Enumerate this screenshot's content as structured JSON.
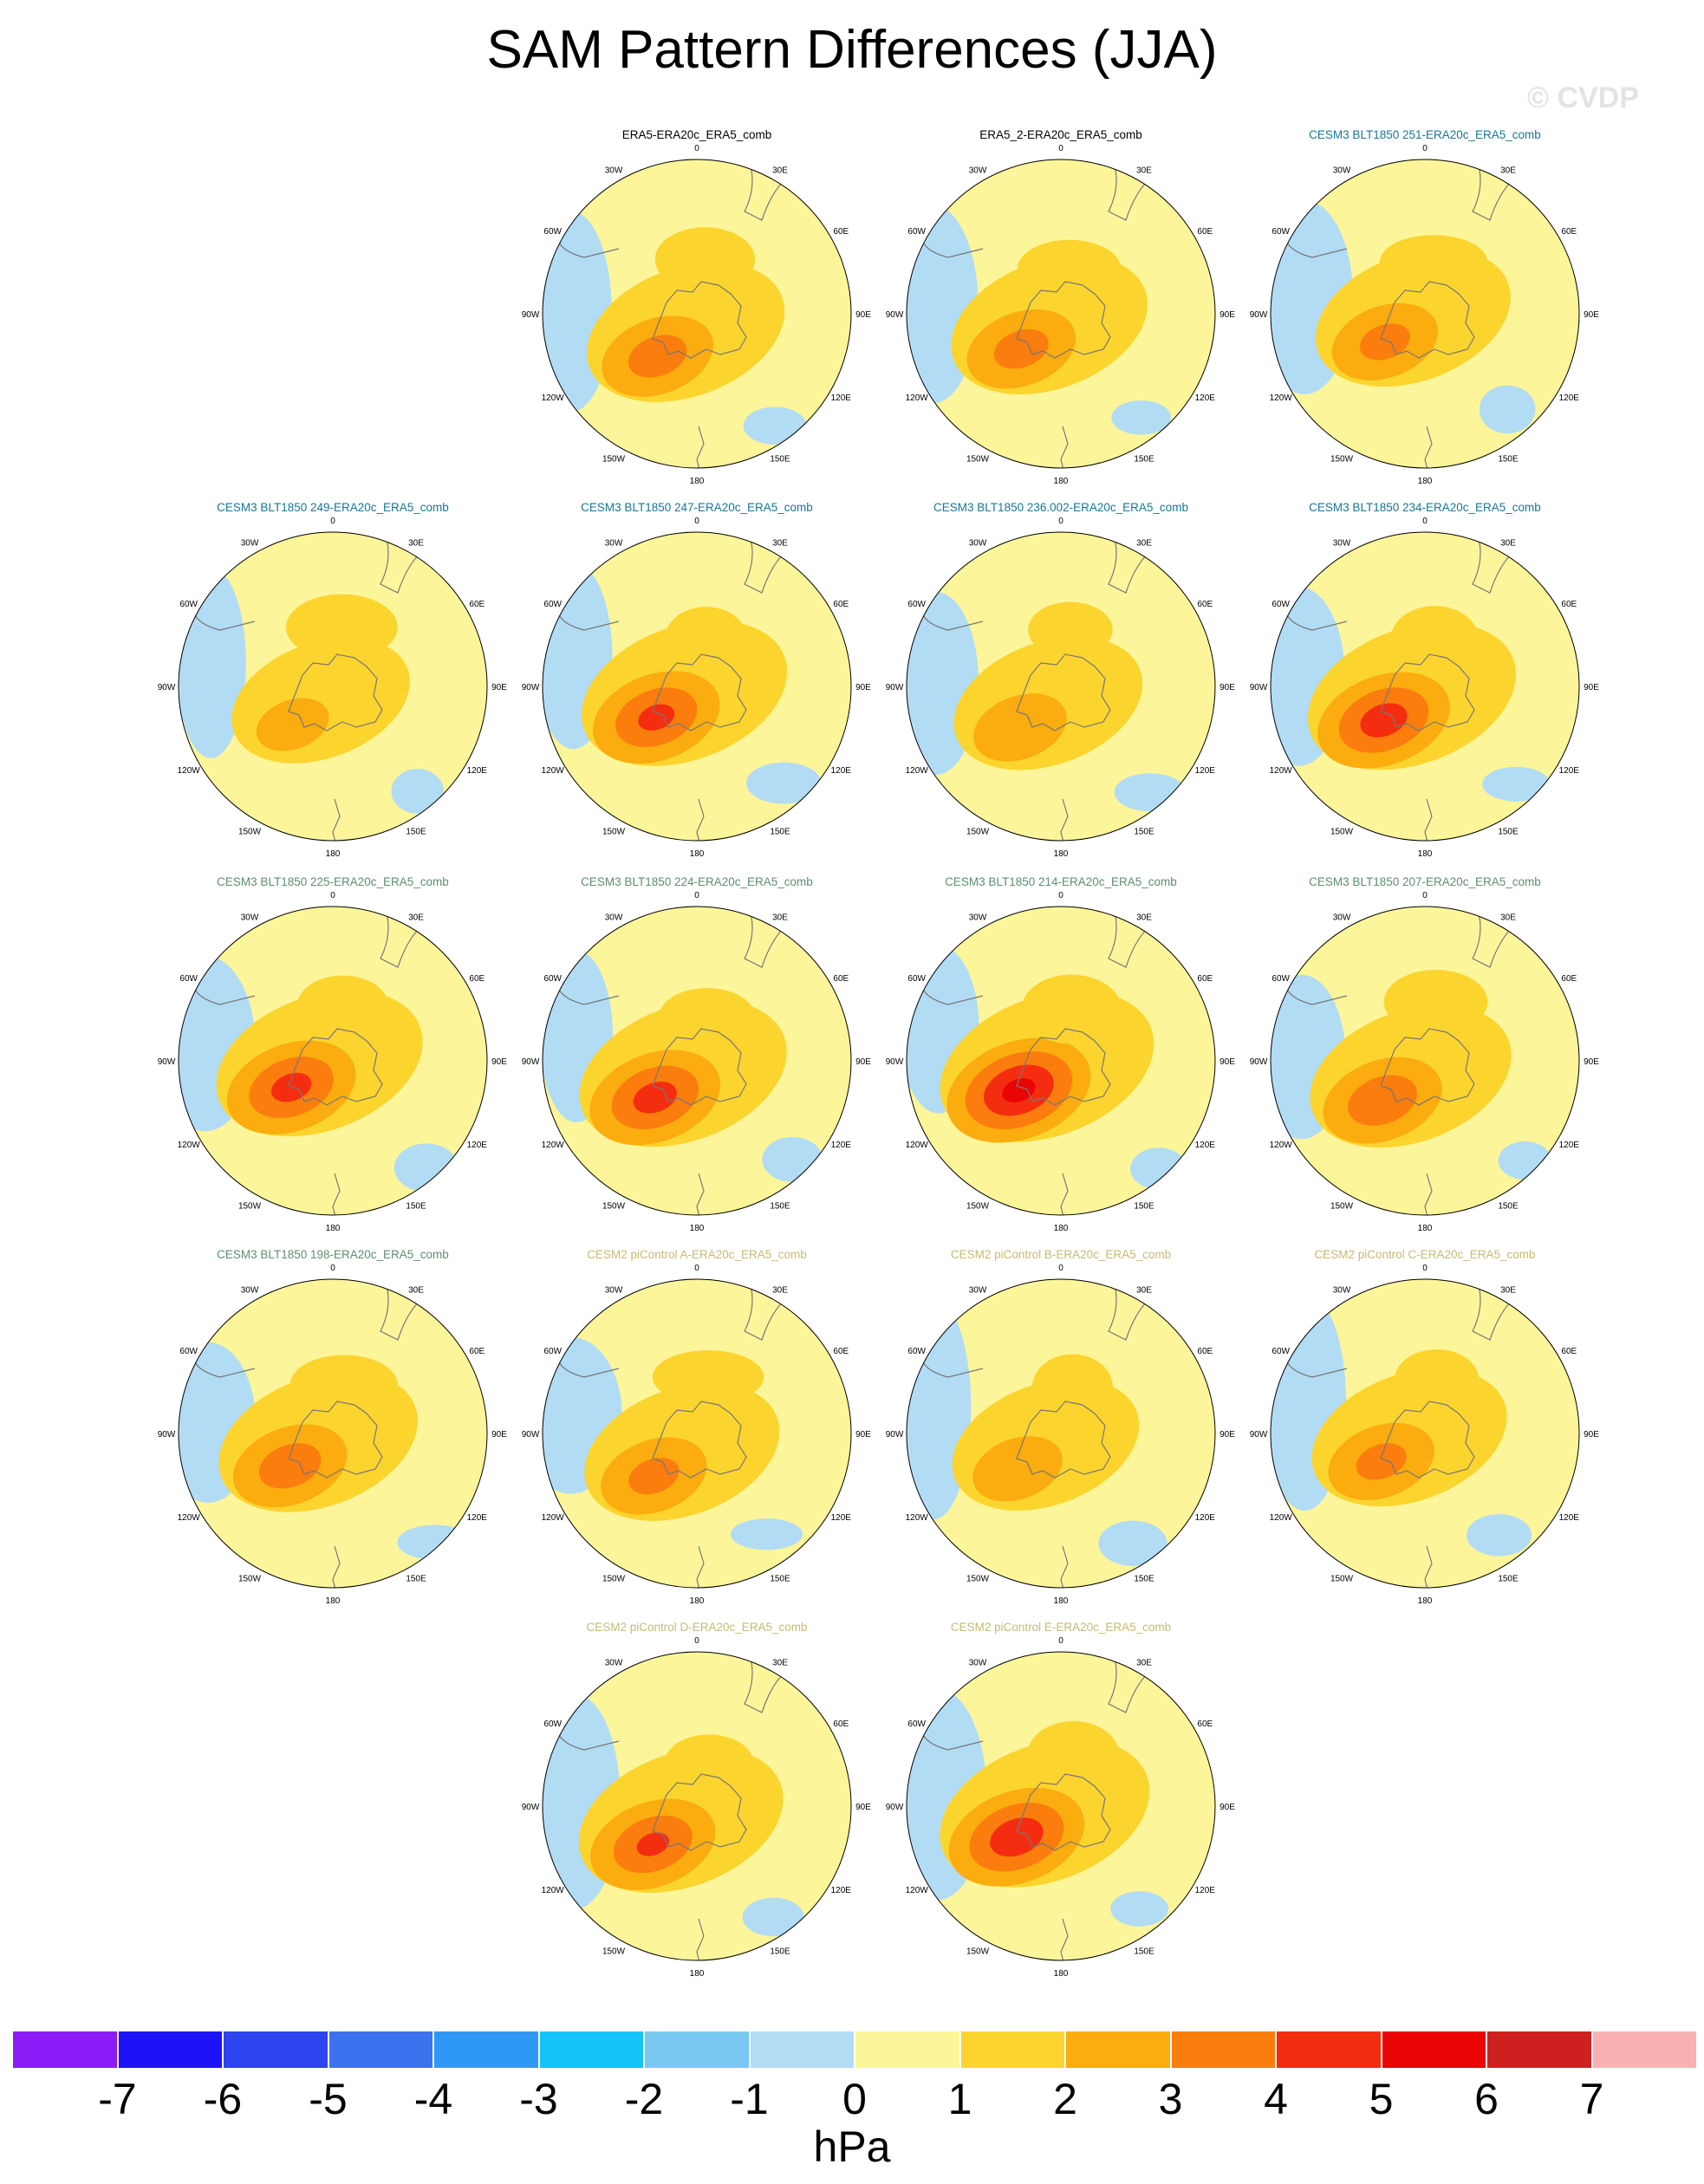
{
  "title": "SAM Pattern Differences (JJA)",
  "watermark": "© CVDP",
  "units": "hPa",
  "lon_labels": [
    "0",
    "30E",
    "60E",
    "90E",
    "120E",
    "150E",
    "180",
    "150W",
    "120W",
    "90W",
    "60W",
    "30W"
  ],
  "colors": {
    "palette": [
      "#8b1cf7",
      "#1e12f7",
      "#2d44ef",
      "#3b73ee",
      "#2f98f6",
      "#12c4fa",
      "#78c8f2",
      "#b2dcf4",
      "#fdf59a",
      "#fcd42e",
      "#fbac0f",
      "#fa7d0d",
      "#f52d10",
      "#ea0404",
      "#cf2020",
      "#f9b1b1"
    ],
    "title_black": "#000000",
    "title_cesm3_blue": "#1a7696",
    "title_cesm3_green": "#5e8e70",
    "title_cesm2": "#c7ba72",
    "coast": "#777777"
  },
  "chart_data": {
    "type": "polar contour map panels (Southern Hemisphere)",
    "colorbar": {
      "levels": [
        -7,
        -6,
        -5,
        -4,
        -3,
        -2,
        -1,
        0,
        1,
        2,
        3,
        4,
        5,
        6,
        7
      ],
      "units": "hPa"
    },
    "panels": [
      {
        "title": "ERA5-ERA20c_ERA5_comb",
        "title_color": "black",
        "max_anomaly": 3.5,
        "min_anomaly": -1.2
      },
      {
        "title": "ERA5_2-ERA20c_ERA5_comb",
        "title_color": "black",
        "max_anomaly": 3.4,
        "min_anomaly": -1.5
      },
      {
        "title": "CESM3 BLT1850 251-ERA20c_ERA5_comb",
        "title_color": "blue",
        "max_anomaly": 3.3,
        "min_anomaly": -0.8
      },
      {
        "title": "CESM3 BLT1850 249-ERA20c_ERA5_comb",
        "title_color": "blue",
        "max_anomaly": 2.4,
        "min_anomaly": -0.5
      },
      {
        "title": "CESM3 BLT1850 247-ERA20c_ERA5_comb",
        "title_color": "blue",
        "max_anomaly": 4.2,
        "min_anomaly": -1.0
      },
      {
        "title": "CESM3 BLT1850 236.002-ERA20c_ERA5_comb",
        "title_color": "blue",
        "max_anomaly": 2.9,
        "min_anomaly": -0.7
      },
      {
        "title": "CESM3 BLT1850 234-ERA20c_ERA5_comb",
        "title_color": "blue",
        "max_anomaly": 4.5,
        "min_anomaly": -0.6
      },
      {
        "title": "CESM3 BLT1850 225-ERA20c_ERA5_comb",
        "title_color": "green",
        "max_anomaly": 4.3,
        "min_anomaly": -0.8
      },
      {
        "title": "CESM3 BLT1850 224-ERA20c_ERA5_comb",
        "title_color": "green",
        "max_anomaly": 4.4,
        "min_anomaly": -0.9
      },
      {
        "title": "CESM3 BLT1850 214-ERA20c_ERA5_comb",
        "title_color": "green",
        "max_anomaly": 5.3,
        "min_anomaly": -1.0
      },
      {
        "title": "CESM3 BLT1850 207-ERA20c_ERA5_comb",
        "title_color": "green",
        "max_anomaly": 3.8,
        "min_anomaly": -0.5
      },
      {
        "title": "CESM3 BLT1850 198-ERA20c_ERA5_comb",
        "title_color": "green",
        "max_anomaly": 3.6,
        "min_anomaly": -0.8
      },
      {
        "title": "CESM2 piControl A-ERA20c_ERA5_comb",
        "title_color": "khaki",
        "max_anomaly": 3.3,
        "min_anomaly": -0.9
      },
      {
        "title": "CESM2 piControl B-ERA20c_ERA5_comb",
        "title_color": "khaki",
        "max_anomaly": 2.8,
        "min_anomaly": -0.9
      },
      {
        "title": "CESM2 piControl C-ERA20c_ERA5_comb",
        "title_color": "khaki",
        "max_anomaly": 3.3,
        "min_anomaly": -0.6
      },
      {
        "title": "CESM2 piControl D-ERA20c_ERA5_comb",
        "title_color": "khaki",
        "max_anomaly": 4.1,
        "min_anomaly": -1.0
      },
      {
        "title": "CESM2 piControl E-ERA20c_ERA5_comb",
        "title_color": "khaki",
        "max_anomaly": 4.7,
        "min_anomaly": -0.9
      }
    ]
  }
}
